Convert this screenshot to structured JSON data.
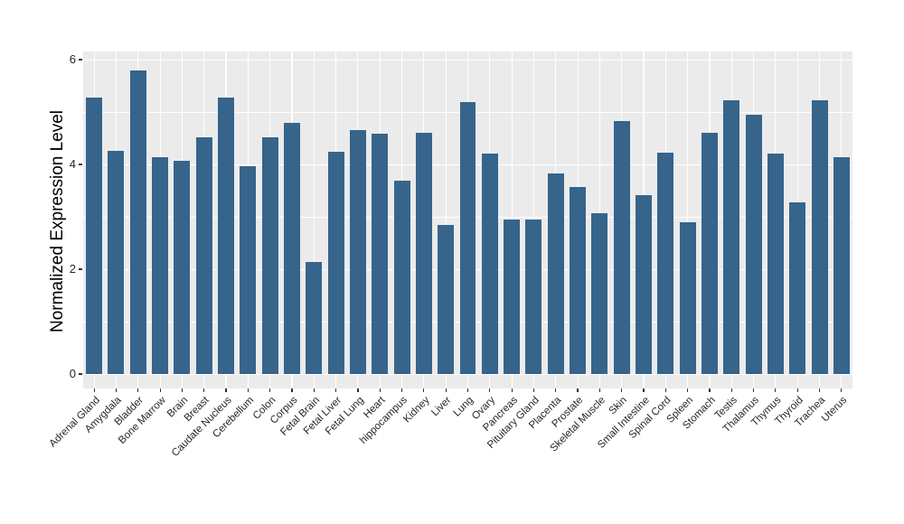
{
  "chart_data": {
    "type": "bar",
    "title": "",
    "xlabel": "",
    "ylabel": "Normalized Expression Level",
    "categories": [
      "Adrenal Gland",
      "Amygdala",
      "Bladder",
      "Bone Marrow",
      "Brain",
      "Breast",
      "Caudate Nucleus",
      "Cerebellum",
      "Colon",
      "Corpus",
      "Fetal Brain",
      "Fetal Liver",
      "Fetal Lung",
      "Heart",
      "hippocampus",
      "Kidney",
      "Liver",
      "Lung",
      "Ovary",
      "Pancreas",
      "Pituitary Gland",
      "Placenta",
      "Prostate",
      "Skeletal Muscle",
      "Skin",
      "Small Intestine",
      "Spinal Cord",
      "Spleen",
      "Stomach",
      "Testis",
      "Thalamus",
      "Thymus",
      "Thyroid",
      "Trachea",
      "Uterus"
    ],
    "values": [
      5.28,
      4.26,
      5.8,
      4.14,
      4.06,
      4.52,
      5.28,
      3.97,
      4.51,
      4.79,
      2.14,
      4.24,
      4.65,
      4.58,
      3.69,
      4.6,
      2.84,
      5.19,
      4.21,
      2.94,
      2.94,
      3.83,
      3.56,
      3.07,
      4.82,
      3.41,
      4.22,
      2.9,
      4.61,
      5.23,
      4.95,
      4.21,
      3.27,
      5.23,
      4.14
    ],
    "yticks": [
      0,
      2,
      4,
      6
    ],
    "ytick_labels": [
      "0",
      "2",
      "4",
      "6"
    ],
    "ylim": [
      0,
      6.08
    ],
    "grid": "on",
    "legend": "none",
    "colors": {
      "bar": "#36648B",
      "panel_bg": "#EBEBEB",
      "grid": "#FFFFFF",
      "axis_text": "#262626",
      "axis_title": "#000000",
      "tick_mark": "#333333"
    }
  }
}
